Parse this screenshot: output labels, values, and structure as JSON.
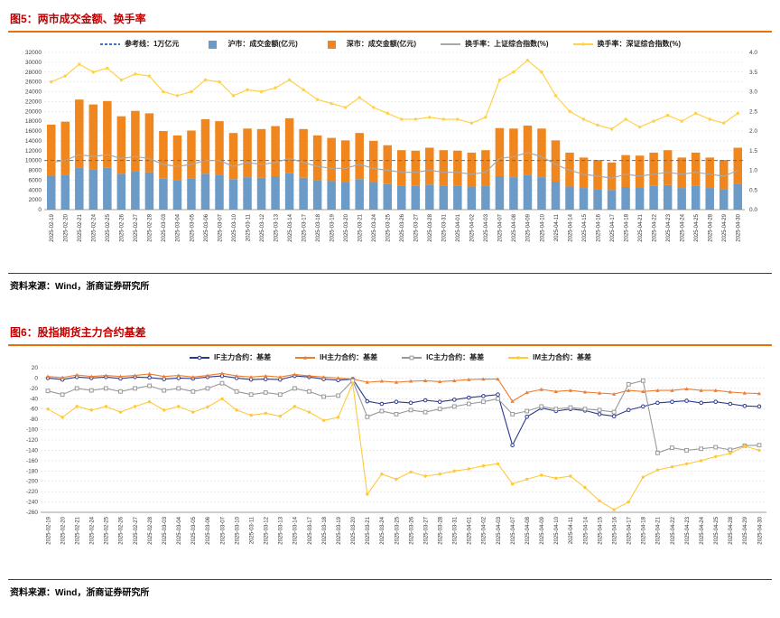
{
  "theme": {
    "title_color": "#C00000",
    "rule_color": "#E8700A",
    "source_rule_color": "#404040",
    "bar_blue": "#6D9BC7",
    "bar_orange": "#F0871E",
    "reference_blue": "#4472C4",
    "turnover_gray": "#A8A8A8",
    "turnover_yellow": "#FFD24A"
  },
  "figure5": {
    "title": "图5：两市成交金额、换手率",
    "source": "资料来源：Wind，浙商证券研究所",
    "legend": [
      {
        "key": "reference",
        "label": "参考线：1万亿元",
        "type": "dashed-line",
        "color": "#4472C4",
        "marker": "none"
      },
      {
        "key": "sh-amount",
        "label": "沪市：成交金额(亿元)",
        "type": "square",
        "color": "#6D9BC7",
        "marker": "none"
      },
      {
        "key": "sz-amount",
        "label": "深市：成交金额(亿元)",
        "type": "square",
        "color": "#F0871E",
        "marker": "none"
      },
      {
        "key": "sh-turnover",
        "label": "换手率：上证综合指数(%)",
        "type": "line",
        "color": "#A8A8A8",
        "marker": "none"
      },
      {
        "key": "sz-turnover",
        "label": "换手率：深证综合指数(%)",
        "type": "line",
        "color": "#FFD24A",
        "marker": "circle"
      }
    ]
  },
  "figure6": {
    "title": "图6：股指期货主力合约基差",
    "source": "资料来源：Wind，浙商证券研究所",
    "legend": [
      {
        "key": "if-basis",
        "label": "IF主力合约：基差",
        "type": "line",
        "color": "#2B3990",
        "marker": "ocircle"
      },
      {
        "key": "ih-basis",
        "label": "IH主力合约：基差",
        "type": "line",
        "color": "#ED7D31",
        "marker": "triangle"
      },
      {
        "key": "ic-basis",
        "label": "IC主力合约：基差",
        "type": "line",
        "color": "#999999",
        "marker": "square"
      },
      {
        "key": "im-basis",
        "label": "IM主力合约：基差",
        "type": "line",
        "color": "#FFC93C",
        "marker": "circle"
      }
    ]
  },
  "chart_data": [
    {
      "id": "figure5",
      "type": "bar+line",
      "title": "两市成交金额、换手率",
      "stacked": true,
      "grid": true,
      "legend_position": "top",
      "categories": [
        "2025-02-19",
        "2025-02-20",
        "2025-02-21",
        "2025-02-24",
        "2025-02-25",
        "2025-02-26",
        "2025-02-27",
        "2025-02-28",
        "2025-03-03",
        "2025-03-04",
        "2025-03-05",
        "2025-03-06",
        "2025-03-07",
        "2025-03-10",
        "2025-03-11",
        "2025-03-12",
        "2025-03-13",
        "2025-03-14",
        "2025-03-17",
        "2025-03-18",
        "2025-03-19",
        "2025-03-20",
        "2025-03-21",
        "2025-03-24",
        "2025-03-25",
        "2025-03-26",
        "2025-03-27",
        "2025-03-28",
        "2025-03-31",
        "2025-04-01",
        "2025-04-02",
        "2025-04-03",
        "2025-04-07",
        "2025-04-08",
        "2025-04-09",
        "2025-04-10",
        "2025-04-11",
        "2025-04-14",
        "2025-04-15",
        "2025-04-16",
        "2025-04-17",
        "2025-04-18",
        "2025-04-21",
        "2025-04-22",
        "2025-04-23",
        "2025-04-24",
        "2025-04-25",
        "2025-04-28",
        "2025-04-29",
        "2025-04-30"
      ],
      "bar_series": [
        {
          "name": "沪市：成交金额(亿元)",
          "color": "#6D9BC7",
          "axis": "left",
          "values": [
            6900,
            7100,
            8600,
            8200,
            8500,
            7300,
            7800,
            7600,
            6300,
            6000,
            6400,
            7300,
            7100,
            6200,
            6600,
            6500,
            6800,
            7400,
            6500,
            6000,
            5800,
            5600,
            6200,
            5600,
            5200,
            4900,
            4800,
            5100,
            4900,
            4800,
            4700,
            4900,
            6800,
            6600,
            7000,
            6600,
            5700,
            4700,
            4400,
            4200,
            4000,
            4600,
            4500,
            4800,
            5000,
            4400,
            4800,
            4400,
            4200,
            5300
          ]
        },
        {
          "name": "深市：成交金额(亿元)",
          "color": "#F0871E",
          "axis": "left",
          "values": [
            10400,
            10800,
            13800,
            13200,
            13600,
            11700,
            12300,
            12000,
            9700,
            9100,
            9700,
            11100,
            10900,
            9400,
            9900,
            9900,
            10200,
            11200,
            9900,
            9100,
            8800,
            8500,
            9400,
            8400,
            7900,
            7200,
            7200,
            7500,
            7200,
            7200,
            6900,
            7200,
            9800,
            9900,
            10100,
            9900,
            8400,
            6900,
            6200,
            5900,
            5600,
            6500,
            6500,
            6800,
            7100,
            6200,
            6800,
            6200,
            5900,
            7300
          ]
        }
      ],
      "line_series": [
        {
          "name": "换手率：上证综合指数(%)",
          "color": "#A8A8A8",
          "axis": "right",
          "marker": "none",
          "values": [
            1.2,
            1.25,
            1.4,
            1.35,
            1.4,
            1.3,
            1.35,
            1.3,
            1.15,
            1.1,
            1.15,
            1.25,
            1.25,
            1.1,
            1.2,
            1.15,
            1.2,
            1.3,
            1.2,
            1.1,
            1.05,
            1.05,
            1.15,
            1.05,
            1.0,
            0.95,
            0.95,
            1.0,
            0.95,
            0.95,
            0.9,
            0.95,
            1.3,
            1.35,
            1.45,
            1.35,
            1.15,
            1.0,
            0.9,
            0.85,
            0.8,
            0.9,
            0.85,
            0.9,
            0.95,
            0.9,
            0.95,
            0.9,
            0.85,
            1.0
          ]
        },
        {
          "name": "换手率：深证综合指数(%)",
          "color": "#FFD24A",
          "axis": "right",
          "marker": "circle",
          "values": [
            3.25,
            3.4,
            3.7,
            3.5,
            3.6,
            3.3,
            3.45,
            3.4,
            3.0,
            2.9,
            3.0,
            3.3,
            3.25,
            2.9,
            3.05,
            3.0,
            3.1,
            3.3,
            3.05,
            2.8,
            2.7,
            2.6,
            2.85,
            2.6,
            2.45,
            2.3,
            2.3,
            2.35,
            2.3,
            2.3,
            2.2,
            2.35,
            3.3,
            3.5,
            3.8,
            3.5,
            2.9,
            2.5,
            2.3,
            2.15,
            2.05,
            2.3,
            2.1,
            2.25,
            2.4,
            2.25,
            2.45,
            2.3,
            2.2,
            2.45
          ]
        }
      ],
      "reference_line": {
        "label": "参考线：1万亿元",
        "value": 10000,
        "color": "#4472C4",
        "style": "dashed"
      },
      "y_left": {
        "min": 0,
        "max": 32000,
        "step": 2000
      },
      "y_right": {
        "min": 0,
        "max": 4,
        "step": 0.5
      }
    },
    {
      "id": "figure6",
      "type": "line",
      "title": "股指期货主力合约基差",
      "grid": true,
      "legend_position": "top",
      "categories": [
        "2025-02-19",
        "2025-02-20",
        "2025-02-21",
        "2025-02-24",
        "2025-02-25",
        "2025-02-26",
        "2025-02-27",
        "2025-02-28",
        "2025-03-03",
        "2025-03-04",
        "2025-03-05",
        "2025-03-06",
        "2025-03-07",
        "2025-03-10",
        "2025-03-11",
        "2025-03-12",
        "2025-03-13",
        "2025-03-14",
        "2025-03-17",
        "2025-03-18",
        "2025-03-19",
        "2025-03-20",
        "2025-03-21",
        "2025-03-24",
        "2025-03-25",
        "2025-03-26",
        "2025-03-27",
        "2025-03-28",
        "2025-03-31",
        "2025-04-01",
        "2025-04-02",
        "2025-04-03",
        "2025-04-07",
        "2025-04-08",
        "2025-04-09",
        "2025-04-10",
        "2025-04-11",
        "2025-04-14",
        "2025-04-15",
        "2025-04-16",
        "2025-04-17",
        "2025-04-18",
        "2025-04-21",
        "2025-04-22",
        "2025-04-23",
        "2025-04-24",
        "2025-04-25",
        "2025-04-28",
        "2025-04-29",
        "2025-04-30"
      ],
      "series": [
        {
          "name": "IF主力合约：基差",
          "color": "#2B3990",
          "marker": "ocircle",
          "values": [
            0,
            -3,
            2,
            0,
            2,
            -1,
            2,
            1,
            -2,
            0,
            -1,
            2,
            4,
            0,
            -3,
            -2,
            -3,
            4,
            2,
            -2,
            -4,
            -2,
            -45,
            -50,
            -46,
            -48,
            -43,
            -46,
            -42,
            -38,
            -35,
            -32,
            -130,
            -75,
            -58,
            -64,
            -60,
            -63,
            -70,
            -74,
            -62,
            -55,
            -48,
            -46,
            -44,
            -48,
            -46,
            -50,
            -54,
            -55
          ]
        },
        {
          "name": "IH主力合约：基差",
          "color": "#ED7D31",
          "marker": "triangle",
          "values": [
            3,
            1,
            6,
            3,
            5,
            3,
            5,
            8,
            3,
            5,
            2,
            5,
            9,
            4,
            2,
            4,
            2,
            7,
            4,
            2,
            0,
            -2,
            -8,
            -6,
            -8,
            -6,
            -5,
            -7,
            -5,
            -3,
            -2,
            -2,
            -45,
            -28,
            -22,
            -26,
            -24,
            -27,
            -29,
            -31,
            -24,
            -26,
            -24,
            -24,
            -21,
            -24,
            -24,
            -27,
            -29,
            -30
          ]
        },
        {
          "name": "IC主力合约：基差",
          "color": "#999999",
          "marker": "square",
          "values": [
            -25,
            -32,
            -20,
            -24,
            -20,
            -26,
            -20,
            -15,
            -24,
            -20,
            -26,
            -20,
            -10,
            -26,
            -32,
            -28,
            -32,
            -20,
            -26,
            -36,
            -34,
            -5,
            -75,
            -64,
            -70,
            -62,
            -66,
            -60,
            -55,
            -50,
            -46,
            -40,
            -70,
            -64,
            -55,
            -60,
            -57,
            -60,
            -62,
            -66,
            -12,
            -5,
            -145,
            -135,
            -140,
            -137,
            -134,
            -139,
            -131,
            -130
          ]
        },
        {
          "name": "IM主力合约：基差",
          "color": "#FFC93C",
          "marker": "circle",
          "values": [
            -60,
            -76,
            -55,
            -62,
            -55,
            -66,
            -55,
            -46,
            -62,
            -55,
            -66,
            -56,
            -40,
            -62,
            -72,
            -68,
            -74,
            -55,
            -66,
            -82,
            -76,
            -10,
            -225,
            -186,
            -196,
            -182,
            -190,
            -186,
            -180,
            -176,
            -170,
            -166,
            -205,
            -196,
            -188,
            -194,
            -190,
            -212,
            -238,
            -255,
            -240,
            -192,
            -178,
            -172,
            -166,
            -160,
            -152,
            -146,
            -132,
            -140
          ]
        }
      ],
      "y": {
        "min": -260,
        "max": 20,
        "step": 20
      }
    }
  ]
}
